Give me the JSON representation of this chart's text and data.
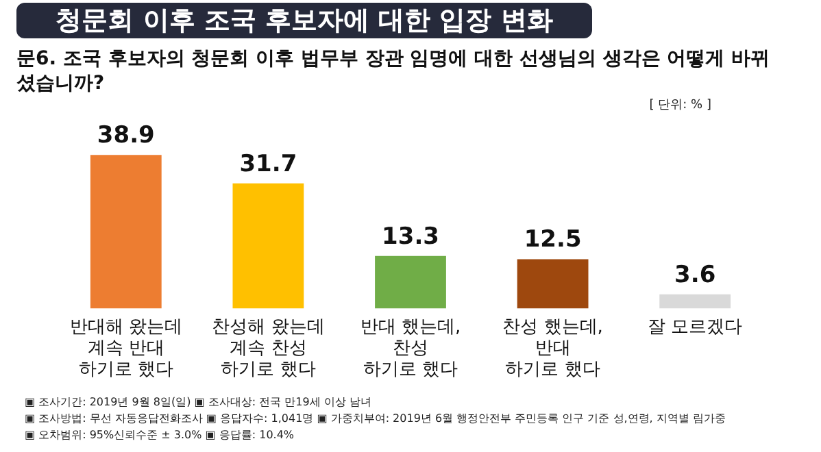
{
  "chart_data": {
    "type": "bar",
    "title": "청문회 이후 조국 후보자에 대한 입장 변화",
    "subtitle": "문6. 조국 후보자의 청문회 이후 법무부 장관 임명에 대한 선생님의 생각은 어떻게 바뀌셨습니까?",
    "categories": [
      "반대해 왔는데\n계속 반대\n하기로 했다",
      "찬성해 왔는데\n계속 찬성\n하기로 했다",
      "반대 했는데,\n찬성\n하기로 했다",
      "찬성 했는데,\n반대\n하기로 했다",
      "잘 모르겠다"
    ],
    "values": [
      38.9,
      31.7,
      13.3,
      12.5,
      3.6
    ],
    "colors": [
      "#ed7d31",
      "#ffc000",
      "#70ad47",
      "#9e480e",
      "#d9d9d9"
    ],
    "data_labels": true,
    "grid": false,
    "legend": false,
    "annotations": [
      "[ 단위: % ]",
      "▣ 조사기간: 2019년 9월 8일(일)  ▣ 조사대상: 전국 만19세 이상 남녀",
      "▣ 조사방법: 무선 자동응답전화조사  ▣ 응답자수: 1,041명  ▣ 가중치부여: 2019년 6월 행정안전부 주민등록 인구 기준 성,연령, 지역별 림가중",
      "▣ 오차범위: 95%신뢰수준 ± 3.0%  ▣ 응답률: 10.4%"
    ]
  }
}
